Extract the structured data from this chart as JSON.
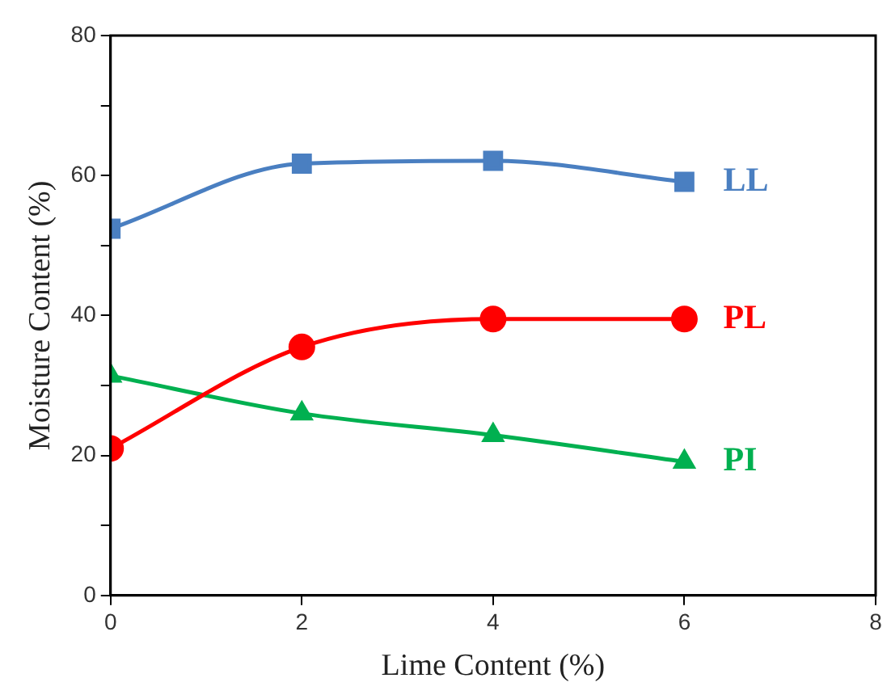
{
  "chart_data": {
    "type": "line",
    "xlabel": "Lime Content (%)",
    "ylabel": "Moisture Content (%)",
    "x": [
      0,
      2,
      4,
      6
    ],
    "series": [
      {
        "name": "LL",
        "color": "#4a7fc1",
        "marker": "square",
        "values": [
          52.4,
          61.7,
          62.1,
          59.1
        ]
      },
      {
        "name": "PL",
        "color": "#ff0000",
        "marker": "circle",
        "values": [
          21.0,
          35.5,
          39.5,
          39.5
        ]
      },
      {
        "name": "PI",
        "color": "#00b050",
        "marker": "triangle",
        "values": [
          31.4,
          26.0,
          22.9,
          19.1
        ]
      }
    ],
    "xlim": [
      0,
      8
    ],
    "xticks": [
      0,
      2,
      4,
      6,
      8
    ],
    "ylim": [
      0,
      80
    ],
    "yticks": [
      0,
      {
        "value": 10,
        "label": null
      },
      20,
      {
        "value": 30,
        "label": null
      },
      40,
      {
        "value": 50,
        "label": null
      },
      60,
      {
        "value": 70,
        "label": null
      },
      80
    ],
    "grid": false,
    "legend": false,
    "line_style": "solid"
  }
}
